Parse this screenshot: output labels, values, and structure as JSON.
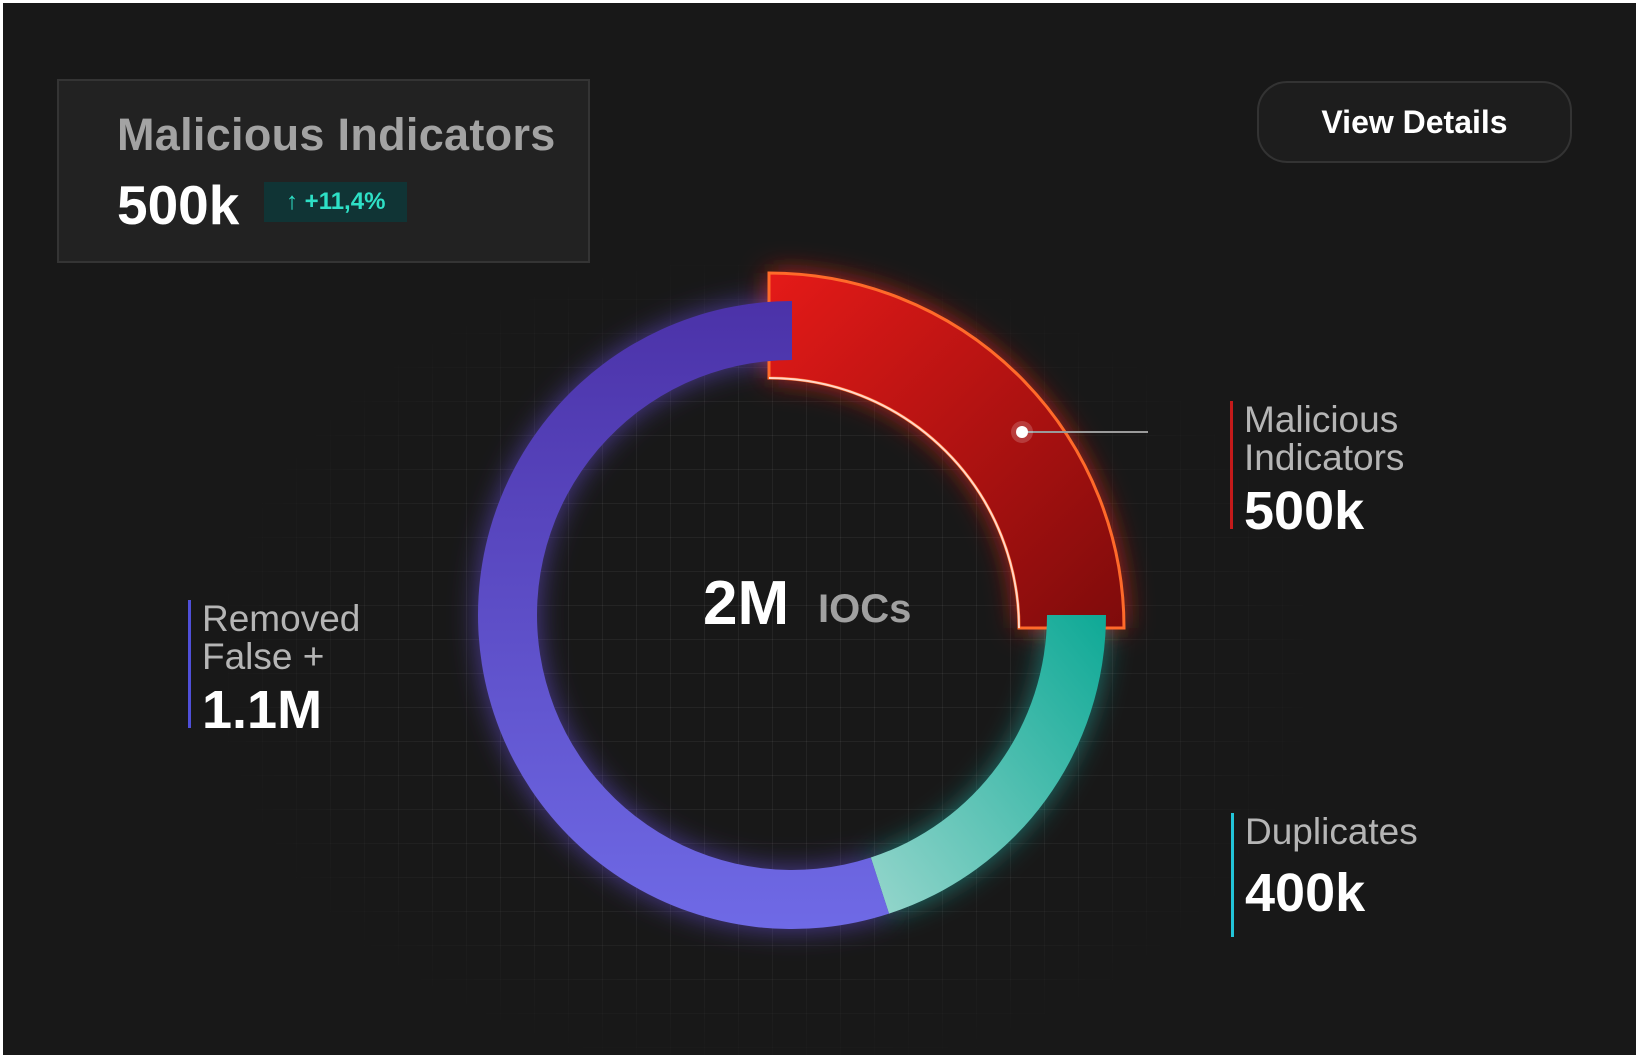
{
  "summary": {
    "title": "Malicious Indicators",
    "value": "500k",
    "change": "+11,4%",
    "change_icon": "arrow-up-icon"
  },
  "actions": {
    "view_details_label": "View Details"
  },
  "center": {
    "total": "2M",
    "unit": "IOCs"
  },
  "colors": {
    "background": "#181818",
    "malicious": "#d01414",
    "malicious_border": "#ff6a2a",
    "removed": "#5b45c8",
    "removed_light": "#6a66e0",
    "duplicates": "#14b3a0",
    "duplicates_light": "#8fd4c8",
    "badge_text": "#2ee0c6"
  },
  "chart_data": {
    "type": "pie",
    "variant": "donut",
    "total_label": "2M IOCs",
    "highlighted_slice": "Malicious Indicators",
    "slices": [
      {
        "name": "Malicious Indicators",
        "label": "Malicious Indicators",
        "display_value": "500k",
        "value": 500000,
        "color": "#d01414"
      },
      {
        "name": "Duplicates",
        "label": "Duplicates",
        "display_value": "400k",
        "value": 400000,
        "color": "#14b3a0"
      },
      {
        "name": "Removed False +",
        "label": "Removed False +",
        "display_value": "1.1M",
        "value": 1100000,
        "color": "#5b45c8"
      }
    ]
  },
  "legend": [
    {
      "name_line1": "Malicious",
      "name_line2": "Indicators",
      "value": "500k",
      "color": "#c41a1a"
    },
    {
      "name_line1": "Removed",
      "name_line2": "False +",
      "value": "1.1M",
      "color": "#4f4fd8"
    },
    {
      "name_line1": "Duplicates",
      "value": "400k",
      "color": "#22c4d8"
    }
  ]
}
